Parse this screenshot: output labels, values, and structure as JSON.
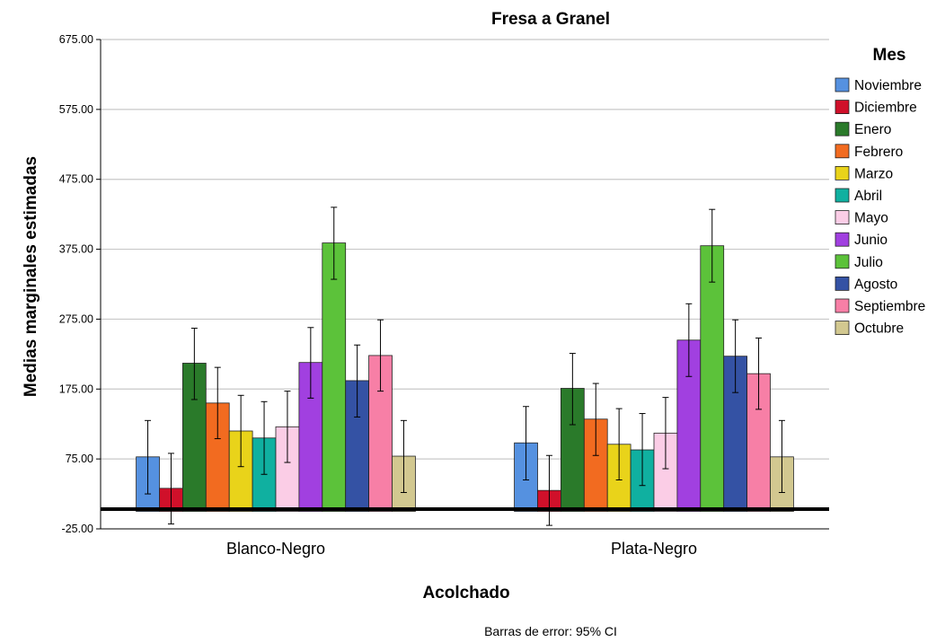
{
  "chart_data": {
    "type": "bar",
    "title": "Fresa a Granel",
    "xlabel": "Acolchado",
    "ylabel": "Medias marginales estimadas",
    "ylim": [
      -25,
      675
    ],
    "yticks": [
      "-25.00",
      "75.00",
      "175.00",
      "275.00",
      "375.00",
      "475.00",
      "575.00",
      "675.00"
    ],
    "categories": [
      "Blanco-Negro",
      "Plata-Negro"
    ],
    "legend_title": "Mes",
    "legend_position": "right",
    "grid": true,
    "error_note": "Barras de error: 95% CI",
    "series": [
      {
        "name": "Noviembre",
        "color": "#5591e0",
        "values": [
          78,
          98
        ],
        "ci_low": [
          25,
          45
        ],
        "ci_high": [
          130,
          150
        ]
      },
      {
        "name": "Diciembre",
        "color": "#d0102a",
        "values": [
          33,
          30
        ],
        "ci_low": [
          -18,
          -20
        ],
        "ci_high": [
          83,
          80
        ]
      },
      {
        "name": "Enero",
        "color": "#2a7a2a",
        "values": [
          212,
          176
        ],
        "ci_low": [
          160,
          124
        ],
        "ci_high": [
          262,
          226
        ]
      },
      {
        "name": "Febrero",
        "color": "#f26b20",
        "values": [
          155,
          132
        ],
        "ci_low": [
          104,
          80
        ],
        "ci_high": [
          206,
          183
        ]
      },
      {
        "name": "Marzo",
        "color": "#e9d31a",
        "values": [
          115,
          96
        ],
        "ci_low": [
          64,
          45
        ],
        "ci_high": [
          166,
          147
        ]
      },
      {
        "name": "Abril",
        "color": "#10b0a0",
        "values": [
          105,
          88
        ],
        "ci_low": [
          53,
          37
        ],
        "ci_high": [
          157,
          140
        ]
      },
      {
        "name": "Mayo",
        "color": "#fbcde6",
        "values": [
          121,
          112
        ],
        "ci_low": [
          70,
          61
        ],
        "ci_high": [
          172,
          163
        ]
      },
      {
        "name": "Junio",
        "color": "#a140e0",
        "values": [
          213,
          245
        ],
        "ci_low": [
          162,
          193
        ],
        "ci_high": [
          263,
          297
        ]
      },
      {
        "name": "Julio",
        "color": "#5cc23a",
        "values": [
          384,
          380
        ],
        "ci_low": [
          332,
          328
        ],
        "ci_high": [
          435,
          432
        ]
      },
      {
        "name": "Agosto",
        "color": "#3452a4",
        "values": [
          187,
          222
        ],
        "ci_low": [
          135,
          170
        ],
        "ci_high": [
          238,
          274
        ]
      },
      {
        "name": "Septiembre",
        "color": "#f77fa6",
        "values": [
          223,
          197
        ],
        "ci_low": [
          172,
          146
        ],
        "ci_high": [
          274,
          248
        ]
      },
      {
        "name": "Octubre",
        "color": "#d2c890",
        "values": [
          79,
          78
        ],
        "ci_low": [
          27,
          27
        ],
        "ci_high": [
          130,
          130
        ]
      }
    ]
  }
}
